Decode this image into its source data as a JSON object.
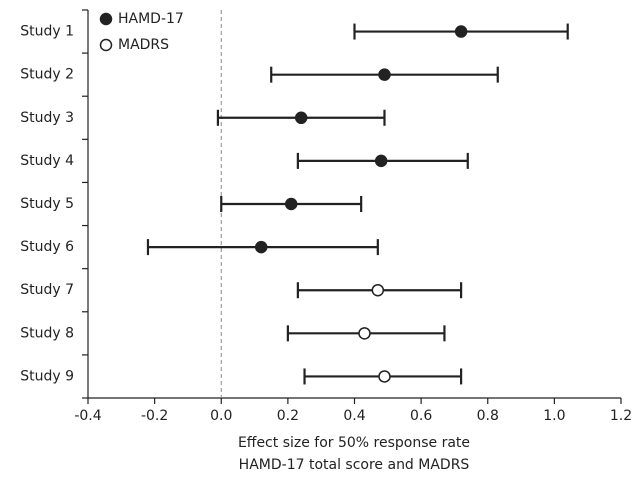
{
  "chart_data": {
    "type": "forest",
    "categories": [
      "Study 1",
      "Study 2",
      "Study 3",
      "Study 4",
      "Study 5",
      "Study 6",
      "Study 7",
      "Study 8",
      "Study 9"
    ],
    "series": [
      {
        "name": "HAMD-17",
        "color": "#222222",
        "fill": "#222222",
        "values": [
          0.72,
          0.49,
          0.24,
          0.48,
          0.21,
          0.12,
          null,
          null,
          null
        ],
        "lower": [
          0.4,
          0.15,
          -0.01,
          0.23,
          0.0,
          -0.22,
          null,
          null,
          null
        ],
        "upper": [
          1.04,
          0.83,
          0.49,
          0.74,
          0.42,
          0.47,
          null,
          null,
          null
        ]
      },
      {
        "name": "MADRS",
        "color": "#222222",
        "fill": "#ffffff",
        "values": [
          null,
          null,
          null,
          null,
          null,
          null,
          0.47,
          0.43,
          0.49
        ],
        "lower": [
          null,
          null,
          null,
          null,
          null,
          null,
          0.23,
          0.2,
          0.25
        ],
        "upper": [
          null,
          null,
          null,
          null,
          null,
          null,
          0.72,
          0.67,
          0.72
        ]
      }
    ],
    "reference_line": 0,
    "xlim": [
      -0.4,
      1.2
    ],
    "xticks": [
      -0.4,
      -0.2,
      {
        "value": 0,
        "label": "0.0"
      },
      0.2,
      0.4,
      0.6,
      0.8,
      {
        "value": 1,
        "label": "1.0"
      },
      1.2
    ],
    "xlabel": [
      "Effect size for 50% response rate",
      "HAMD-17 total score and MADRS"
    ],
    "legend": "top-left"
  }
}
